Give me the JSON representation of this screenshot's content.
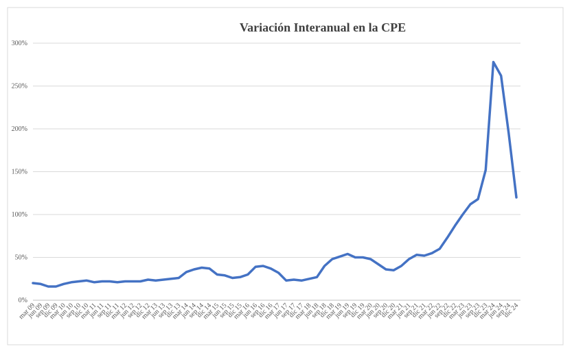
{
  "chart_data": {
    "type": "line",
    "title": "Variación Interanual en la CPE",
    "categories": [
      "mar 09",
      "jun 09",
      "sep 09",
      "dic 09",
      "mar 10",
      "jun 10",
      "sep 10",
      "dic 10",
      "mar 11",
      "jun 11",
      "sep 11",
      "dic 11",
      "mar 12",
      "jun 12",
      "sep 12",
      "dic 12",
      "mar 13",
      "jun 13",
      "sep 13",
      "dic 13",
      "mar 14",
      "jun 14",
      "sep 14",
      "dic 14",
      "mar 15",
      "jun 15",
      "sep 15",
      "dic 15",
      "mar 16",
      "jun 16",
      "sep 16",
      "dic 16",
      "mar 17",
      "jun 17",
      "sep 17",
      "dic 17",
      "mar 18",
      "jun 18",
      "sep 18",
      "dic 18",
      "mar 19",
      "jun 19",
      "sep 19",
      "dic 19",
      "mar 20",
      "jun 20",
      "sep 20",
      "dic 20",
      "mar 21",
      "jun 21",
      "sep 21",
      "dic 21",
      "mar 22",
      "jun 22",
      "sep 22",
      "dic 22",
      "mar 23",
      "jun 23",
      "sep 23",
      "dic 23",
      "mar 24",
      "jun 24",
      "sep 24",
      "dic 24"
    ],
    "series": [
      {
        "name": "Variación Interanual",
        "color": "#4472c4",
        "values": [
          20,
          19,
          16,
          16,
          19,
          21,
          22,
          23,
          21,
          22,
          22,
          21,
          22,
          22,
          22,
          24,
          23,
          24,
          25,
          26,
          33,
          36,
          38,
          37,
          30,
          29,
          26,
          27,
          30,
          39,
          40,
          37,
          32,
          23,
          24,
          23,
          25,
          27,
          40,
          48,
          51,
          54,
          50,
          50,
          48,
          42,
          36,
          35,
          40,
          48,
          53,
          52,
          55,
          60,
          73,
          87,
          100,
          112,
          118,
          152,
          278,
          262,
          195,
          120
        ]
      }
    ],
    "ylim": [
      0,
      300
    ],
    "yticks": [
      {
        "value": 0,
        "label": "0%"
      },
      {
        "value": 50,
        "label": "50%"
      },
      {
        "value": 100,
        "label": "100%"
      },
      {
        "value": 150,
        "label": "150%"
      },
      {
        "value": 200,
        "label": "200%"
      },
      {
        "value": 250,
        "label": "250%"
      },
      {
        "value": 300,
        "label": "300%"
      }
    ],
    "grid": true
  }
}
